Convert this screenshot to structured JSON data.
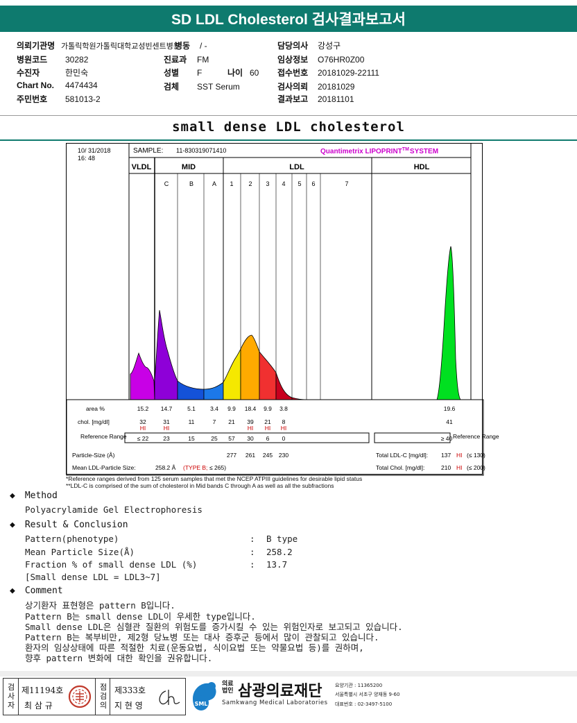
{
  "title": "SD LDL Cholesterol 검사결과보고서",
  "header": {
    "left": [
      {
        "k": "의뢰기관명",
        "v": "가톨릭학원가톨릭대학교성빈센트병원"
      },
      {
        "k": "병원코드",
        "v": "30282"
      },
      {
        "k": "수진자",
        "v": "한민숙"
      },
      {
        "k": "Chart No.",
        "v": "4474434"
      },
      {
        "k": "주민번호",
        "v": "581013-2"
      }
    ],
    "mid": [
      {
        "k": "병동",
        "v": "/ -"
      },
      {
        "k": "진료과",
        "v": "FM"
      },
      {
        "k": "성별",
        "v": "F"
      },
      {
        "k": "검체",
        "v": "SST Serum"
      }
    ],
    "age": {
      "k": "나이",
      "v": "60"
    },
    "right": [
      {
        "k": "담당의사",
        "v": "강성구"
      },
      {
        "k": "임상정보",
        "v": "O76HR0Z00"
      },
      {
        "k": "접수번호",
        "v": "20181029-22111"
      },
      {
        "k": "검사의뢰",
        "v": "20181029"
      },
      {
        "k": "결과보고",
        "v": "20181101"
      }
    ]
  },
  "subtitle": "small dense LDL cholesterol",
  "chart_data": {
    "type": "area",
    "date": "10/ 31/2018",
    "time": "16: 48",
    "sample_label": "SAMPLE:",
    "sample_id": "11-830319071410",
    "brand": "Quantimetrix LIPOPRINT",
    "brand_tm": "TM",
    "brand_sys": "SYSTEM",
    "groups": [
      "VLDL",
      "MID",
      "LDL",
      "HDL"
    ],
    "bands": [
      "C",
      "B",
      "A",
      "1",
      "2",
      "3",
      "4",
      "5",
      "6",
      "7"
    ],
    "band_colors": [
      "#8e00d8",
      "#1452d8",
      "#1c78e8",
      "#f5e800",
      "#ffaa00",
      "#f03030",
      "#c8001e",
      "#00e020"
    ],
    "row_labels": {
      "area": "area %",
      "chol": "chol. [mg/dl]",
      "ref": "Reference Range",
      "size": "Particle-Size (Å)",
      "mean": "Mean LDL-Particle Size:"
    },
    "area_pct": [
      "15.2",
      "14.7",
      "5.1",
      "3.4",
      "9.9",
      "18.4",
      "9.9",
      "3.8",
      "19.6"
    ],
    "chol": [
      "32",
      "31",
      "11",
      "7",
      "21",
      "39",
      "21",
      "8",
      "41"
    ],
    "hi": [
      "HI",
      "HI",
      "HI",
      "HI",
      "HI"
    ],
    "reference": [
      "≤ 22",
      "23",
      "15",
      "25",
      "57",
      "30",
      "6",
      "0",
      "≥ 40"
    ],
    "reference_right": "Reference Range",
    "particle_size": [
      "277",
      "261",
      "245",
      "230"
    ],
    "mean_size": "258.2 Å",
    "mean_type": "(TYPE B;",
    "mean_limit": "≤ 265)",
    "total_ldl": {
      "label": "Total LDL-C [mg/dl]:",
      "value": "137",
      "flag": "HI",
      "limit": "(≤ 130)"
    },
    "total_chol": {
      "label": "Total Chol. [mg/dl]:",
      "value": "210",
      "flag": "HI",
      "limit": "(≤ 200)"
    }
  },
  "footnotes": [
    "*Reference ranges derived from 125 serum samples that met the NCEP ATPIII guidelines for desirable lipid status",
    "**LDL-C is comprised of the sum of cholesterol in Mid bands C through A as well as all the subfractions"
  ],
  "method": {
    "heading": "Method",
    "text": "Polyacrylamide Gel Electrophoresis"
  },
  "result": {
    "heading": "Result & Conclusion",
    "rows": [
      {
        "k": "Pattern(phenotype)",
        "v": "B type"
      },
      {
        "k": "Mean Particle Size(Å)",
        "v": "258.2"
      },
      {
        "k": "Fraction % of small dense LDL (%)",
        "v": "13.7"
      }
    ],
    "note": "[Small dense LDL = LDL3~7]"
  },
  "comment": {
    "heading": "Comment",
    "lines": [
      "상기환자 표현형은 pattern B입니다.",
      "Pattern B는 small dense LDL이 우세한 type입니다.",
      "Small dense LDL은 심혈관 질환의 위험도를 증가시킬 수 있는 위험인자로 보고되고 있습니다.",
      "Pattern B는 복부비만, 제2형 당뇨병 또는 대사 증후군 등에서 많이 관찰되고 있습니다.",
      "환자의 임상상태에 따른 적절한 치료(운동요법, 식이요법 또는 약물요법 등)를 권하며,",
      "향후 pattern 변화에 대한 확인을 권유합니다."
    ]
  },
  "signature": {
    "tester_label": "검사자",
    "tester_no": "제11194호",
    "tester_name": "최 삼 규",
    "reviewer_label": "점검의",
    "reviewer_no": "제333호",
    "reviewer_name": "지 현 영"
  },
  "org": {
    "badge": "SML",
    "type": "의료법인",
    "name": "삼광의료재단",
    "name_en": "Samkwang Medical Laboratories",
    "code_label": "요양기관 : 11365200",
    "address": "서울특별시 서초구 양재동 9-60",
    "phone": "대표번호 : 02-3497-5100"
  }
}
